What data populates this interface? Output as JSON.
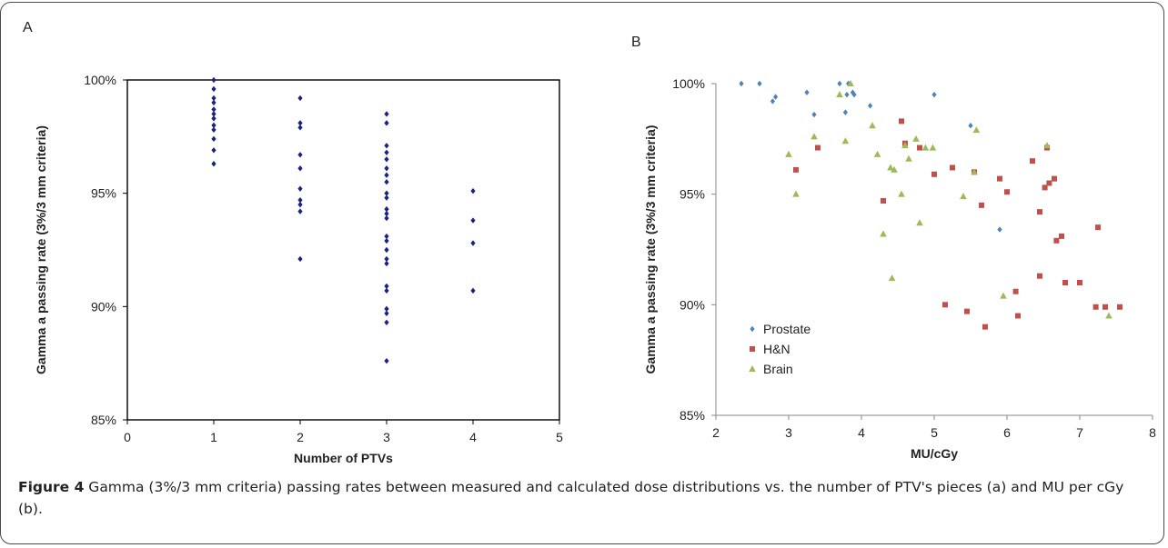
{
  "panel_a_letter": "A",
  "panel_b_letter": "B",
  "caption": {
    "label": "Figure 4",
    "text": " Gamma (3%/3 mm criteria) passing rates between measured and calculated dose distributions vs. the number of PTV's pieces (a) and MU per cGy (b)",
    "end": "."
  },
  "chart_data": [
    {
      "type": "scatter",
      "title": "",
      "xlabel": "Number of PTVs",
      "ylabel": "Gamma a passing rate (3%/3 mm criteria)",
      "xlim": [
        0,
        5
      ],
      "ylim": [
        85,
        100
      ],
      "xticks": [
        "0",
        "1",
        "2",
        "3",
        "4",
        "5"
      ],
      "yticks": [
        "85%",
        "90%",
        "95%",
        "100%"
      ],
      "grid": false,
      "series": [
        {
          "color": "#1a237e",
          "marker": "diamond",
          "points": [
            [
              1,
              100.0
            ],
            [
              1,
              99.6
            ],
            [
              1,
              99.2
            ],
            [
              1,
              99.0
            ],
            [
              1,
              98.7
            ],
            [
              1,
              98.5
            ],
            [
              1,
              98.3
            ],
            [
              1,
              98.0
            ],
            [
              1,
              97.8
            ],
            [
              1,
              97.4
            ],
            [
              1,
              96.9
            ],
            [
              1,
              96.3
            ],
            [
              2,
              99.2
            ],
            [
              2,
              98.1
            ],
            [
              2,
              97.9
            ],
            [
              2,
              96.7
            ],
            [
              2,
              96.1
            ],
            [
              2,
              95.2
            ],
            [
              2,
              94.7
            ],
            [
              2,
              94.5
            ],
            [
              2,
              94.2
            ],
            [
              2,
              92.1
            ],
            [
              3,
              98.5
            ],
            [
              3,
              98.1
            ],
            [
              3,
              97.1
            ],
            [
              3,
              96.8
            ],
            [
              3,
              96.5
            ],
            [
              3,
              96.1
            ],
            [
              3,
              95.8
            ],
            [
              3,
              95.5
            ],
            [
              3,
              95.0
            ],
            [
              3,
              94.8
            ],
            [
              3,
              94.3
            ],
            [
              3,
              94.1
            ],
            [
              3,
              93.9
            ],
            [
              3,
              93.1
            ],
            [
              3,
              92.9
            ],
            [
              3,
              92.5
            ],
            [
              3,
              92.1
            ],
            [
              3,
              91.9
            ],
            [
              3,
              90.9
            ],
            [
              3,
              90.7
            ],
            [
              3,
              89.9
            ],
            [
              3,
              89.7
            ],
            [
              3,
              89.3
            ],
            [
              3,
              87.6
            ],
            [
              4,
              95.1
            ],
            [
              4,
              93.8
            ],
            [
              4,
              92.8
            ],
            [
              4,
              90.7
            ]
          ]
        }
      ]
    },
    {
      "type": "scatter",
      "title": "",
      "xlabel": "MU/cGy",
      "ylabel": "Gamma a passing rate (3%/3 mm criteria)",
      "xlim": [
        2,
        8
      ],
      "ylim": [
        85,
        100
      ],
      "xticks": [
        "2",
        "3",
        "4",
        "5",
        "6",
        "7",
        "8"
      ],
      "yticks": [
        "85%",
        "90%",
        "95%",
        "100%"
      ],
      "grid": false,
      "legend": "bottom-left",
      "series": [
        {
          "name": "Prostate",
          "color": "#4f81bd",
          "marker": "diamond",
          "points": [
            [
              2.35,
              100.0
            ],
            [
              2.6,
              100.0
            ],
            [
              2.78,
              99.2
            ],
            [
              2.82,
              99.4
            ],
            [
              3.25,
              99.6
            ],
            [
              3.35,
              98.6
            ],
            [
              3.7,
              100.0
            ],
            [
              3.78,
              98.7
            ],
            [
              3.8,
              99.5
            ],
            [
              3.82,
              100.0
            ],
            [
              3.88,
              99.6
            ],
            [
              3.9,
              99.5
            ],
            [
              4.12,
              99.0
            ],
            [
              5.0,
              99.5
            ],
            [
              5.5,
              98.1
            ],
            [
              5.9,
              93.4
            ]
          ]
        },
        {
          "name": "H&N",
          "color": "#c0504d",
          "marker": "square",
          "points": [
            [
              3.1,
              96.1
            ],
            [
              3.4,
              97.1
            ],
            [
              4.3,
              94.7
            ],
            [
              4.55,
              98.3
            ],
            [
              4.6,
              97.3
            ],
            [
              4.8,
              97.1
            ],
            [
              5.0,
              95.9
            ],
            [
              5.15,
              90.0
            ],
            [
              5.25,
              96.2
            ],
            [
              5.45,
              89.7
            ],
            [
              5.55,
              96.0
            ],
            [
              5.65,
              94.5
            ],
            [
              5.7,
              89.0
            ],
            [
              5.9,
              95.7
            ],
            [
              6.0,
              95.1
            ],
            [
              6.12,
              90.6
            ],
            [
              6.15,
              89.5
            ],
            [
              6.35,
              96.5
            ],
            [
              6.45,
              94.2
            ],
            [
              6.45,
              91.3
            ],
            [
              6.52,
              95.3
            ],
            [
              6.55,
              97.1
            ],
            [
              6.58,
              95.5
            ],
            [
              6.65,
              95.7
            ],
            [
              6.68,
              92.9
            ],
            [
              6.75,
              93.1
            ],
            [
              6.8,
              91.0
            ],
            [
              7.0,
              91.0
            ],
            [
              7.22,
              89.9
            ],
            [
              7.25,
              93.5
            ],
            [
              7.35,
              89.9
            ],
            [
              7.55,
              89.9
            ]
          ]
        },
        {
          "name": "Brain",
          "color": "#9bbb59",
          "marker": "triangle",
          "points": [
            [
              3.0,
              96.8
            ],
            [
              3.1,
              95.0
            ],
            [
              3.35,
              97.6
            ],
            [
              3.7,
              99.5
            ],
            [
              3.78,
              97.4
            ],
            [
              3.85,
              100.0
            ],
            [
              4.15,
              98.1
            ],
            [
              4.22,
              96.8
            ],
            [
              4.3,
              93.2
            ],
            [
              4.4,
              96.2
            ],
            [
              4.42,
              91.2
            ],
            [
              4.45,
              96.1
            ],
            [
              4.55,
              95.0
            ],
            [
              4.6,
              97.2
            ],
            [
              4.65,
              96.6
            ],
            [
              4.75,
              97.5
            ],
            [
              4.8,
              93.7
            ],
            [
              4.88,
              97.1
            ],
            [
              4.98,
              97.1
            ],
            [
              5.4,
              94.9
            ],
            [
              5.55,
              96.0
            ],
            [
              5.58,
              97.9
            ],
            [
              5.95,
              90.4
            ],
            [
              6.55,
              97.2
            ],
            [
              7.4,
              89.5
            ]
          ]
        }
      ]
    }
  ]
}
